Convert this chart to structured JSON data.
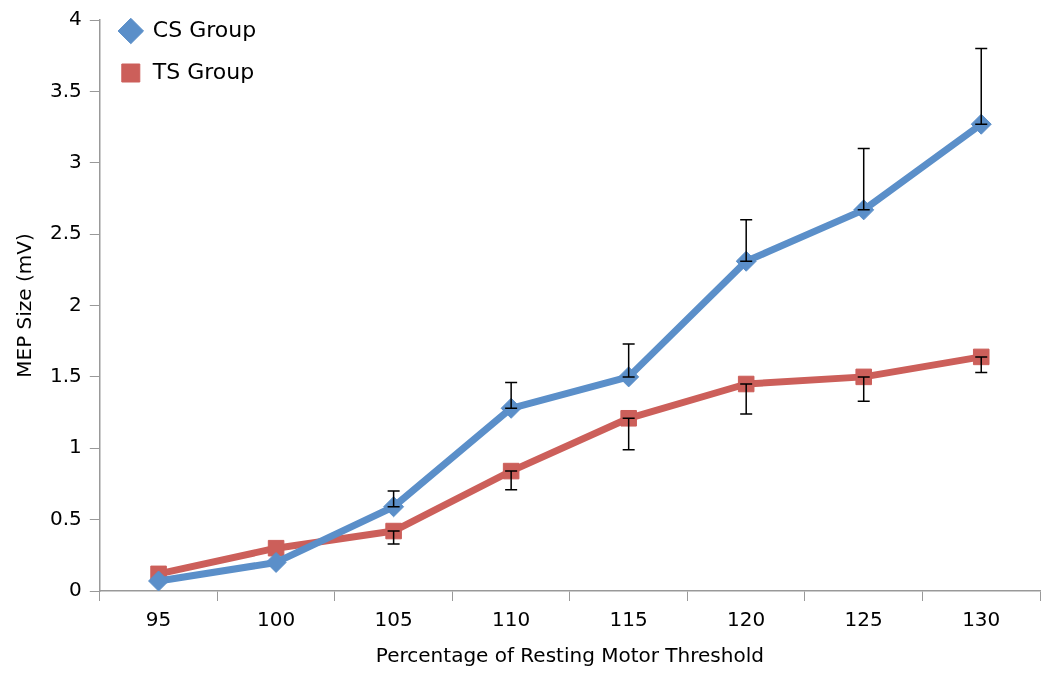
{
  "chart_data": {
    "type": "line",
    "xlabel": "Percentage of Resting Motor Threshold",
    "ylabel": "MEP Size (mV)",
    "categories": [
      "95",
      "100",
      "105",
      "110",
      "115",
      "120",
      "125",
      "130"
    ],
    "series": [
      {
        "name": "CS Group",
        "color": "#5b8fc9",
        "marker": "diamond",
        "values": [
          0.07,
          0.2,
          0.59,
          1.28,
          1.5,
          2.31,
          2.67,
          3.27
        ],
        "errors": [
          null,
          null,
          [
            0.59,
            0.7
          ],
          [
            1.28,
            1.46
          ],
          [
            1.5,
            1.73
          ],
          [
            2.31,
            2.6
          ],
          [
            2.67,
            3.1
          ],
          [
            3.27,
            3.8
          ]
        ]
      },
      {
        "name": "TS Group",
        "color": "#cc5f5a",
        "marker": "square",
        "values": [
          0.12,
          0.3,
          0.42,
          0.84,
          1.21,
          1.45,
          1.5,
          1.64
        ],
        "errors": [
          null,
          null,
          [
            0.33,
            0.42
          ],
          [
            0.71,
            0.84
          ],
          [
            0.99,
            1.21
          ],
          [
            1.24,
            1.45
          ],
          [
            1.33,
            1.5
          ],
          [
            1.53,
            1.64
          ]
        ]
      }
    ],
    "ylim": [
      0,
      4
    ],
    "yticks": [
      0,
      0.5,
      1,
      1.5,
      2,
      2.5,
      3,
      3.5,
      4
    ],
    "grid": false,
    "legend": "top left",
    "line_style": "solid"
  }
}
